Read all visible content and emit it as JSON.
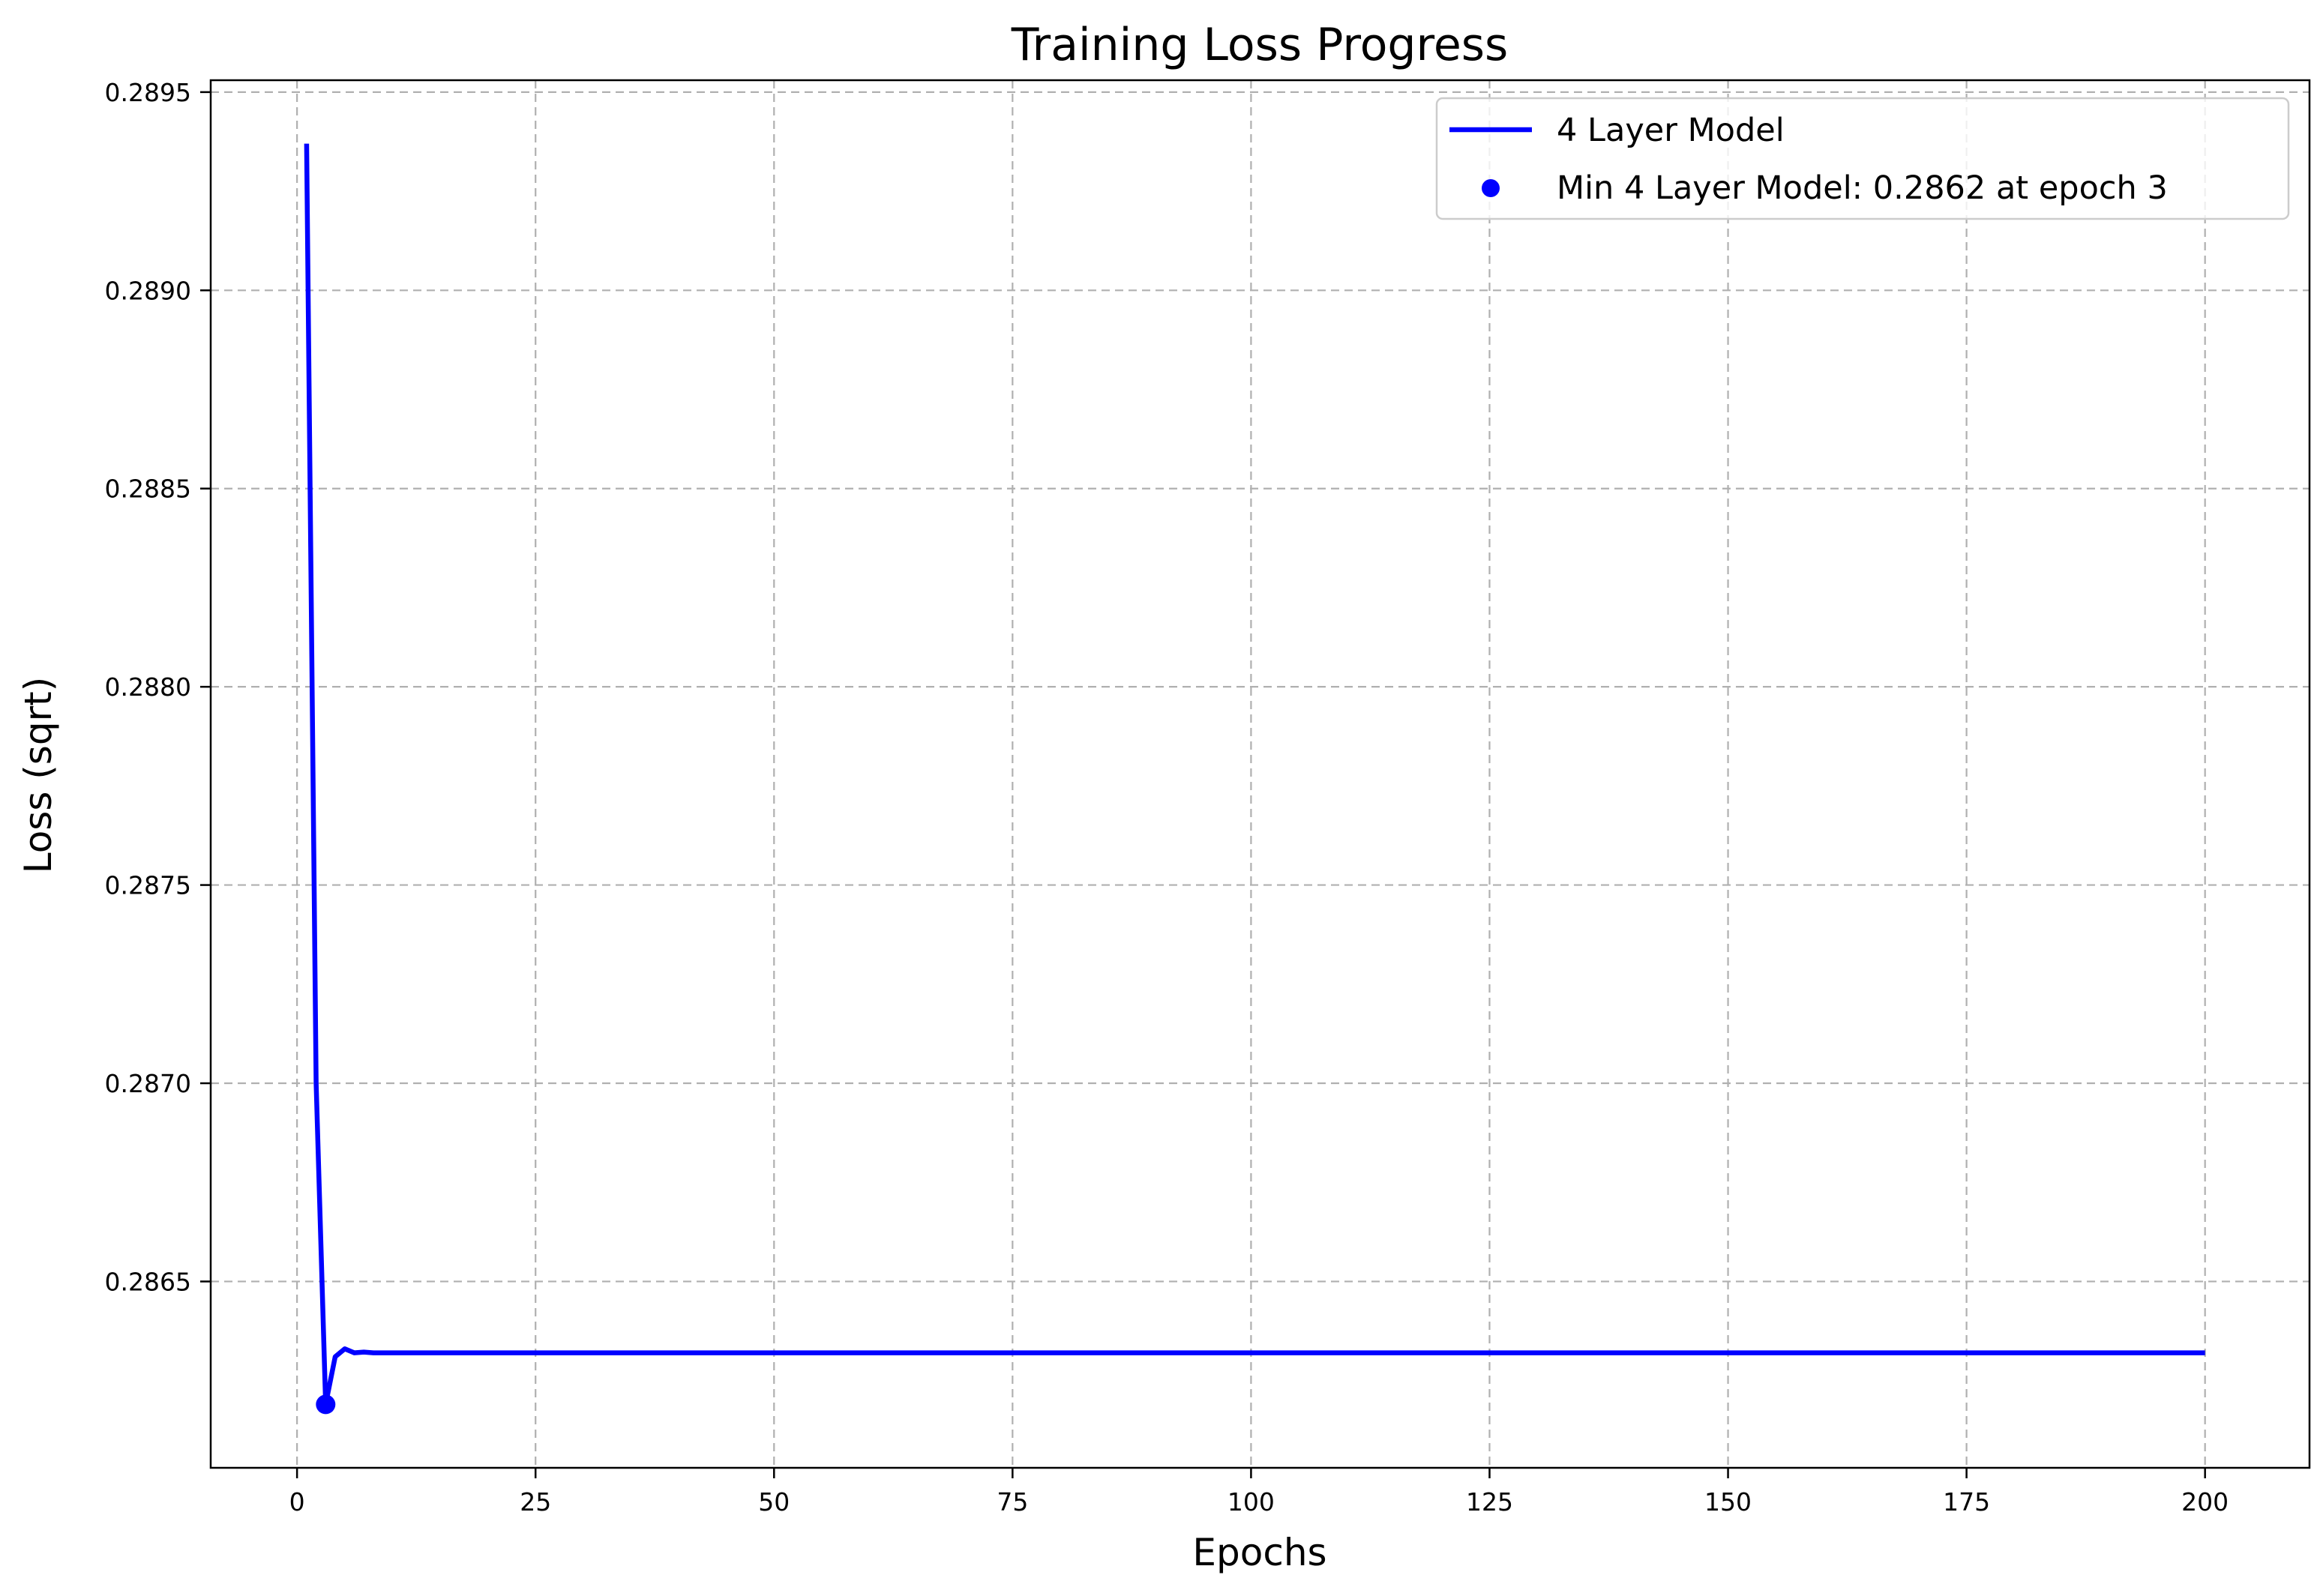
{
  "chart_data": {
    "type": "line",
    "title": "Training Loss Progress",
    "xlabel": "Epochs",
    "ylabel": "Loss (sqrt)",
    "xlim": [
      -9.05,
      210.95
    ],
    "ylim": [
      0.28603,
      0.28953
    ],
    "xticks": [
      0,
      25,
      50,
      75,
      100,
      125,
      150,
      175,
      200
    ],
    "yticks": [
      0.2865,
      0.287,
      0.2875,
      0.288,
      0.2885,
      0.289,
      0.2895
    ],
    "ytick_labels": [
      "0.2865",
      "0.2870",
      "0.2875",
      "0.2880",
      "0.2885",
      "0.2890",
      "0.2895"
    ],
    "grid": true,
    "legend_position": "top-right",
    "series": [
      {
        "name": "4 Layer Model",
        "color": "#0000ff",
        "x": [
          1,
          2,
          3,
          4,
          5,
          6,
          7,
          8,
          10,
          15,
          20,
          50,
          100,
          150,
          200
        ],
        "y": [
          0.28937,
          0.287,
          0.28619,
          0.28631,
          0.28633,
          0.28632,
          0.286322,
          0.28632,
          0.28632,
          0.28632,
          0.28632,
          0.28632,
          0.28632,
          0.28632,
          0.28632
        ]
      }
    ],
    "annotations": [
      {
        "type": "min-marker",
        "label": "Min 4 Layer Model: 0.2862 at epoch 3",
        "x": 3,
        "y": 0.28619,
        "color": "#0000ff"
      }
    ]
  }
}
